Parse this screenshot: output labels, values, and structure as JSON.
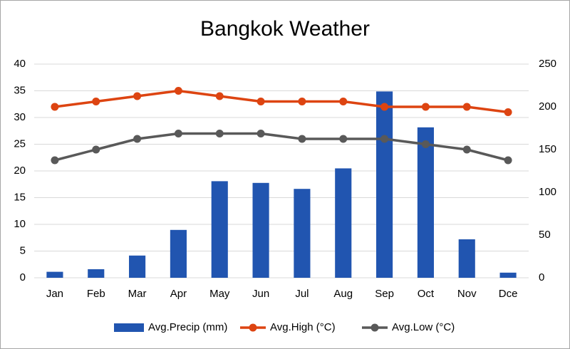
{
  "chart_data": {
    "type": "bar-line",
    "title": "Bangkok Weather",
    "categories": [
      "Jan",
      "Feb",
      "Mar",
      "Apr",
      "May",
      "Jun",
      "Jul",
      "Aug",
      "Sep",
      "Oct",
      "Nov",
      "Dce"
    ],
    "series": [
      {
        "name": "Avg.Precip (mm)",
        "type": "bar",
        "axis": "y2",
        "color": "#2155b0",
        "values": [
          7,
          10,
          26,
          56,
          113,
          111,
          104,
          128,
          218,
          176,
          45,
          6
        ]
      },
      {
        "name": "Avg.High (°C)",
        "type": "line",
        "color": "#dd4411",
        "values": [
          32,
          33,
          34,
          35,
          34,
          33,
          33,
          33,
          32,
          32,
          32,
          31
        ]
      },
      {
        "name": "Avg.Low (°C)",
        "type": "line",
        "color": "#595959",
        "values": [
          22,
          24,
          26,
          27,
          27,
          27,
          26,
          26,
          26,
          25,
          24,
          22
        ]
      }
    ],
    "ylim": [
      0,
      40
    ],
    "yticks": [
      0,
      5,
      10,
      15,
      20,
      25,
      30,
      35,
      40
    ],
    "y2lim": [
      0,
      250
    ],
    "y2ticks": [
      0,
      50,
      100,
      150,
      200,
      250
    ],
    "grid": true,
    "legend": "bottom"
  }
}
